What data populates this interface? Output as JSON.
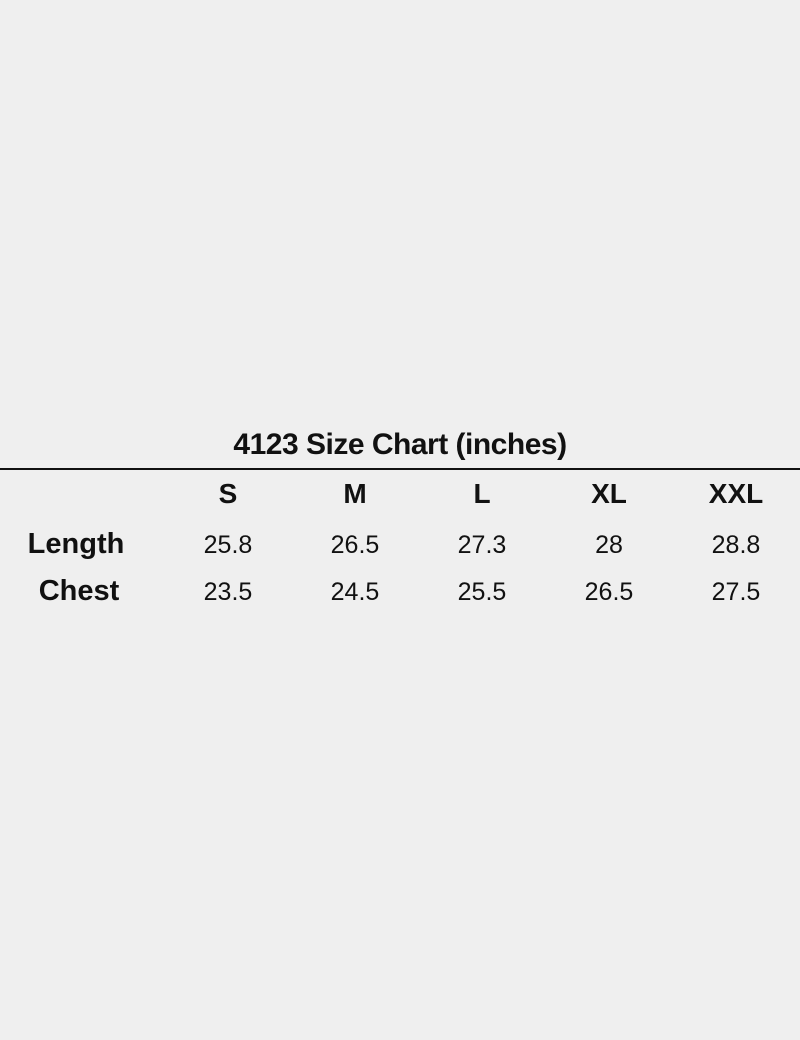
{
  "title": "4123 Size Chart (inches)",
  "sizes": [
    "S",
    "M",
    "L",
    "XL",
    "XXL"
  ],
  "rows": [
    {
      "label": "Length",
      "values": [
        "25.8",
        "26.5",
        "27.3",
        "28",
        "28.8"
      ]
    },
    {
      "label": "Chest",
      "values": [
        "23.5",
        "24.5",
        "25.5",
        "26.5",
        "27.5"
      ]
    }
  ]
}
